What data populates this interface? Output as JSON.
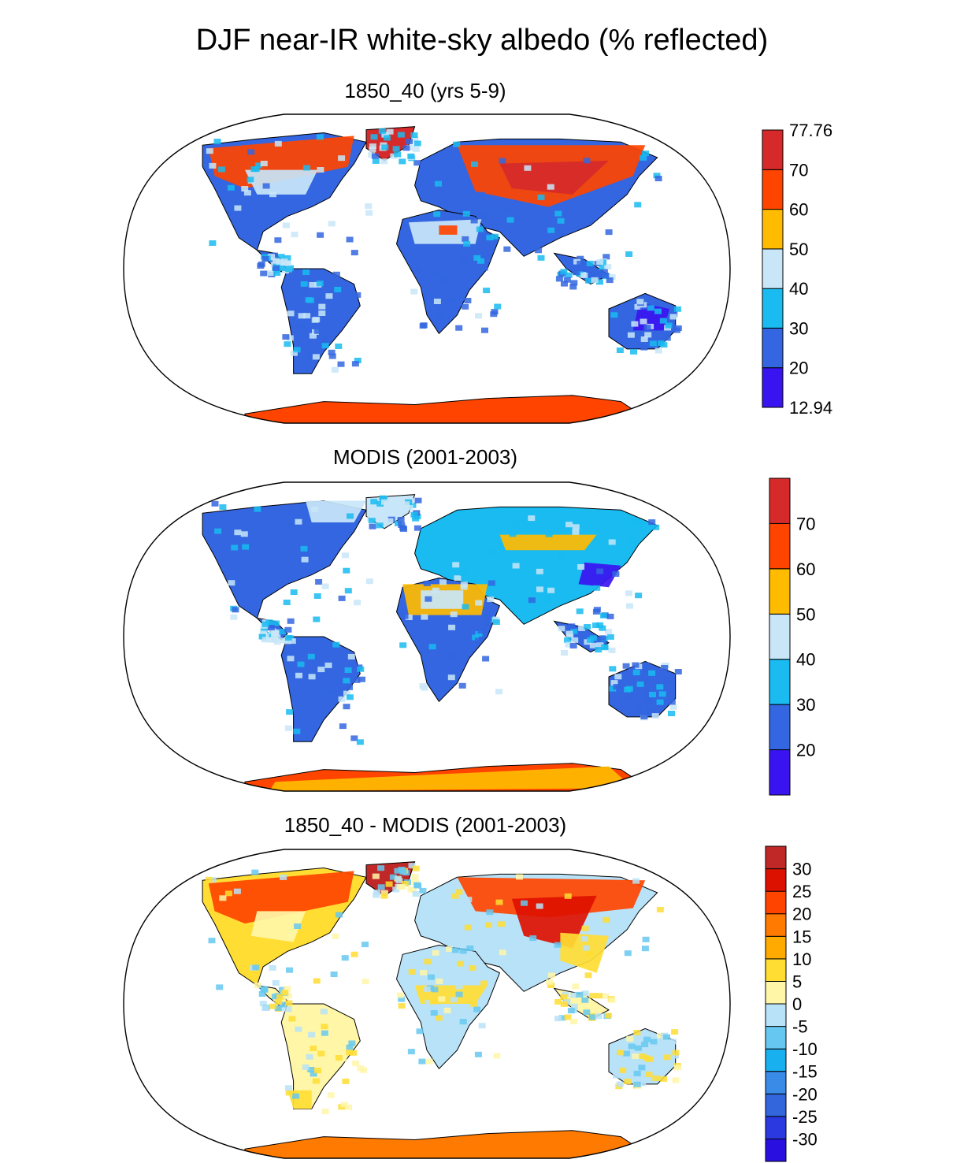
{
  "title": "DJF near-IR white-sky albedo (% reflected)",
  "panels": [
    {
      "id": "model",
      "title": "1850_40 (yrs 5-9)",
      "colorbar": {
        "colors": [
          "#3a14f0",
          "#3366e0",
          "#19bbf0",
          "#c8e6f8",
          "#ffbb00",
          "#ff4400",
          "#d62a2a"
        ],
        "labels": [
          "12.94",
          "20",
          "30",
          "40",
          "50",
          "60",
          "70",
          "77.76"
        ]
      }
    },
    {
      "id": "obs",
      "title": "MODIS (2001-2003)",
      "colorbar": {
        "colors": [
          "#3a14f0",
          "#3366e0",
          "#19bbf0",
          "#c8e6f8",
          "#ffbb00",
          "#ff4400",
          "#d62a2a"
        ],
        "labels": [
          "20",
          "30",
          "40",
          "50",
          "60",
          "70"
        ]
      }
    },
    {
      "id": "diff",
      "title": "1850_40 - MODIS (2001-2003)",
      "colorbar": {
        "colors": [
          "#2a10e0",
          "#2a3ae0",
          "#3366dd",
          "#3a8ae8",
          "#19b0f0",
          "#66c8f0",
          "#b8e2f8",
          "#fff6a8",
          "#ffdd33",
          "#ffaa00",
          "#ff7a00",
          "#ff4400",
          "#dd1100",
          "#c02828"
        ],
        "labels": [
          "-30",
          "-25",
          "-20",
          "-15",
          "-10",
          "-5",
          "0",
          "5",
          "10",
          "15",
          "20",
          "25",
          "30"
        ]
      }
    }
  ]
}
